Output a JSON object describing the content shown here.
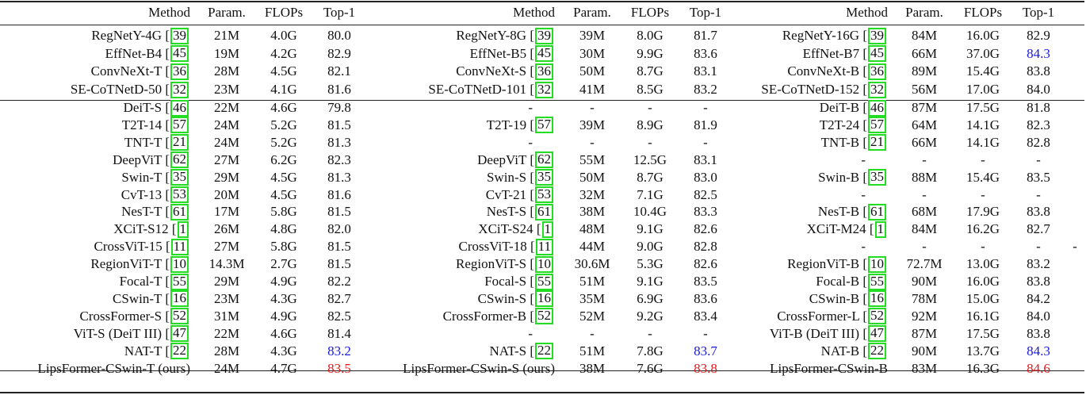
{
  "colors": {
    "best_other": "#1a1adf",
    "ours": "#e4161b",
    "citation_box": "#22dd22"
  },
  "headers": [
    "Method",
    "Param.",
    "FLOPs",
    "Top-1"
  ],
  "blocks": [
    {
      "cnn_rows": [
        {
          "method": "RegNetY-4G",
          "cite": "39",
          "param": "21M",
          "flops": "4.0G",
          "top1": "80.0"
        },
        {
          "method": "EffNet-B4",
          "cite": "45",
          "param": "19M",
          "flops": "4.2G",
          "top1": "82.9"
        },
        {
          "method": "ConvNeXt-T",
          "cite": "36",
          "param": "28M",
          "flops": "4.5G",
          "top1": "82.1"
        },
        {
          "method": "SE-CoTNetD-50",
          "cite": "32",
          "param": "23M",
          "flops": "4.1G",
          "top1": "81.6"
        }
      ],
      "transformer_rows": [
        {
          "method": "DeiT-S",
          "cite": "46",
          "param": "22M",
          "flops": "4.6G",
          "top1": "79.8"
        },
        {
          "method": "T2T-14",
          "cite": "57",
          "param": "24M",
          "flops": "5.2G",
          "top1": "81.5"
        },
        {
          "method": "TNT-T",
          "cite": "21",
          "param": "24M",
          "flops": "5.2G",
          "top1": "81.3"
        },
        {
          "method": "DeepViT",
          "cite": "62",
          "param": "27M",
          "flops": "6.2G",
          "top1": "82.3"
        },
        {
          "method": "Swin-T",
          "cite": "35",
          "param": "29M",
          "flops": "4.5G",
          "top1": "81.3"
        },
        {
          "method": "CvT-13",
          "cite": "53",
          "param": "20M",
          "flops": "4.5G",
          "top1": "81.6"
        },
        {
          "method": "NesT-T",
          "cite": "61",
          "param": "17M",
          "flops": "5.8G",
          "top1": "81.5"
        },
        {
          "method": "XCiT-S12",
          "cite": "1",
          "param": "26M",
          "flops": "4.8G",
          "top1": "82.0"
        },
        {
          "method": "CrossViT-15",
          "cite": "11",
          "param": "27M",
          "flops": "5.8G",
          "top1": "81.5"
        },
        {
          "method": "RegionViT-T",
          "cite": "10",
          "param": "14.3M",
          "flops": "2.7G",
          "top1": "81.5"
        },
        {
          "method": "Focal-T",
          "cite": "55",
          "param": "29M",
          "flops": "4.9G",
          "top1": "82.2"
        },
        {
          "method": "CSwin-T",
          "cite": "16",
          "param": "23M",
          "flops": "4.3G",
          "top1": "82.7"
        },
        {
          "method": "CrossFormer-S",
          "cite": "52",
          "param": "31M",
          "flops": "4.9G",
          "top1": "82.5"
        },
        {
          "method": "ViT-S (DeiT III)",
          "cite": "47",
          "param": "22M",
          "flops": "4.6G",
          "top1": "81.4"
        },
        {
          "method": "NAT-T",
          "cite": "22",
          "param": "28M",
          "flops": "4.3G",
          "top1": "83.2",
          "highlight": "best_other"
        }
      ],
      "ours": {
        "method": "LipsFormer-CSwin-T (ours)",
        "param": "24M",
        "flops": "4.7G",
        "top1": "83.5",
        "highlight": "ours"
      }
    },
    {
      "cnn_rows": [
        {
          "method": "RegNetY-8G",
          "cite": "39",
          "param": "39M",
          "flops": "8.0G",
          "top1": "81.7"
        },
        {
          "method": "EffNet-B5",
          "cite": "45",
          "param": "30M",
          "flops": "9.9G",
          "top1": "83.6"
        },
        {
          "method": "ConvNeXt-S",
          "cite": "36",
          "param": "50M",
          "flops": "8.7G",
          "top1": "83.1"
        },
        {
          "method": "SE-CoTNetD-101",
          "cite": "32",
          "param": "41M",
          "flops": "8.5G",
          "top1": "83.2"
        }
      ],
      "transformer_rows": [
        {
          "method": "-",
          "param": "-",
          "flops": "-",
          "top1": "-"
        },
        {
          "method": "T2T-19",
          "cite": "57",
          "param": "39M",
          "flops": "8.9G",
          "top1": "81.9"
        },
        {
          "method": "-",
          "param": "-",
          "flops": "-",
          "top1": "-"
        },
        {
          "method": "DeepViT",
          "cite": "62",
          "param": "55M",
          "flops": "12.5G",
          "top1": "83.1"
        },
        {
          "method": "Swin-S",
          "cite": "35",
          "param": "50M",
          "flops": "8.7G",
          "top1": "83.0"
        },
        {
          "method": "CvT-21",
          "cite": "53",
          "param": "32M",
          "flops": "7.1G",
          "top1": "82.5"
        },
        {
          "method": "NesT-S",
          "cite": "61",
          "param": "38M",
          "flops": "10.4G",
          "top1": "83.3"
        },
        {
          "method": "XCiT-S24",
          "cite": "1",
          "param": "48M",
          "flops": "9.1G",
          "top1": "82.6"
        },
        {
          "method": "CrossViT-18",
          "cite": "11",
          "param": "44M",
          "flops": "9.0G",
          "top1": "82.8"
        },
        {
          "method": "RegionViT-S",
          "cite": "10",
          "param": "30.6M",
          "flops": "5.3G",
          "top1": "82.6"
        },
        {
          "method": "Focal-S",
          "cite": "55",
          "param": "51M",
          "flops": "9.1G",
          "top1": "83.5"
        },
        {
          "method": "CSwin-S",
          "cite": "16",
          "param": "35M",
          "flops": "6.9G",
          "top1": "83.6"
        },
        {
          "method": "CrossFormer-B",
          "cite": "52",
          "param": "52M",
          "flops": "9.2G",
          "top1": "83.4"
        },
        {
          "method": "-",
          "param": "-",
          "flops": "-",
          "top1": "-"
        },
        {
          "method": "NAT-S",
          "cite": "22",
          "param": "51M",
          "flops": "7.8G",
          "top1": "83.7",
          "highlight": "best_other"
        }
      ],
      "ours": {
        "method": "LipsFormer-CSwin-S (ours)",
        "param": "38M",
        "flops": "7.6G",
        "top1": "83.8",
        "highlight": "ours"
      }
    },
    {
      "cnn_rows": [
        {
          "method": "RegNetY-16G",
          "cite": "39",
          "param": "84M",
          "flops": "16.0G",
          "top1": "82.9"
        },
        {
          "method": "EffNet-B7",
          "cite": "45",
          "param": "66M",
          "flops": "37.0G",
          "top1": "84.3",
          "highlight": "best_other"
        },
        {
          "method": "ConvNeXt-B",
          "cite": "36",
          "param": "89M",
          "flops": "15.4G",
          "top1": "83.8"
        },
        {
          "method": "SE-CoTNetD-152",
          "cite": "32",
          "param": "56M",
          "flops": "17.0G",
          "top1": "84.0"
        }
      ],
      "transformer_rows": [
        {
          "method": "DeiT-B",
          "cite": "46",
          "param": "87M",
          "flops": "17.5G",
          "top1": "81.8"
        },
        {
          "method": "T2T-24",
          "cite": "57",
          "param": "64M",
          "flops": "14.1G",
          "top1": "82.3"
        },
        {
          "method": "TNT-B",
          "cite": "21",
          "param": "66M",
          "flops": "14.1G",
          "top1": "82.8"
        },
        {
          "method": "-",
          "param": "-",
          "flops": "-",
          "top1": "-"
        },
        {
          "method": "Swin-B",
          "cite": "35",
          "param": "88M",
          "flops": "15.4G",
          "top1": "83.5"
        },
        {
          "method": "-",
          "param": "-",
          "flops": "-",
          "top1": "-"
        },
        {
          "method": "NesT-B",
          "cite": "61",
          "param": "68M",
          "flops": "17.9G",
          "top1": "83.8"
        },
        {
          "method": "XCiT-M24",
          "cite": "1",
          "param": "84M",
          "flops": "16.2G",
          "top1": "82.7"
        },
        {
          "method": "-",
          "param": "-",
          "flops": "-",
          "top1": "-",
          "extra": "-"
        },
        {
          "method": "RegionViT-B",
          "cite": "10",
          "param": "72.7M",
          "flops": "13.0G",
          "top1": "83.2"
        },
        {
          "method": "Focal-B",
          "cite": "55",
          "param": "90M",
          "flops": "16.0G",
          "top1": "83.8"
        },
        {
          "method": "CSwin-B",
          "cite": "16",
          "param": "78M",
          "flops": "15.0G",
          "top1": "84.2"
        },
        {
          "method": "CrossFormer-L",
          "cite": "52",
          "param": "92M",
          "flops": "16.1G",
          "top1": "84.0"
        },
        {
          "method": "ViT-B (DeiT III)",
          "cite": "47",
          "param": "87M",
          "flops": "17.5G",
          "top1": "83.8"
        },
        {
          "method": "NAT-B",
          "cite": "22",
          "param": "90M",
          "flops": "13.7G",
          "top1": "84.3",
          "highlight": "best_other"
        }
      ],
      "ours": {
        "method": "LipsFormer-CSwin-B",
        "param": "83M",
        "flops": "16.3G",
        "top1": "84.6",
        "highlight": "ours"
      }
    }
  ]
}
